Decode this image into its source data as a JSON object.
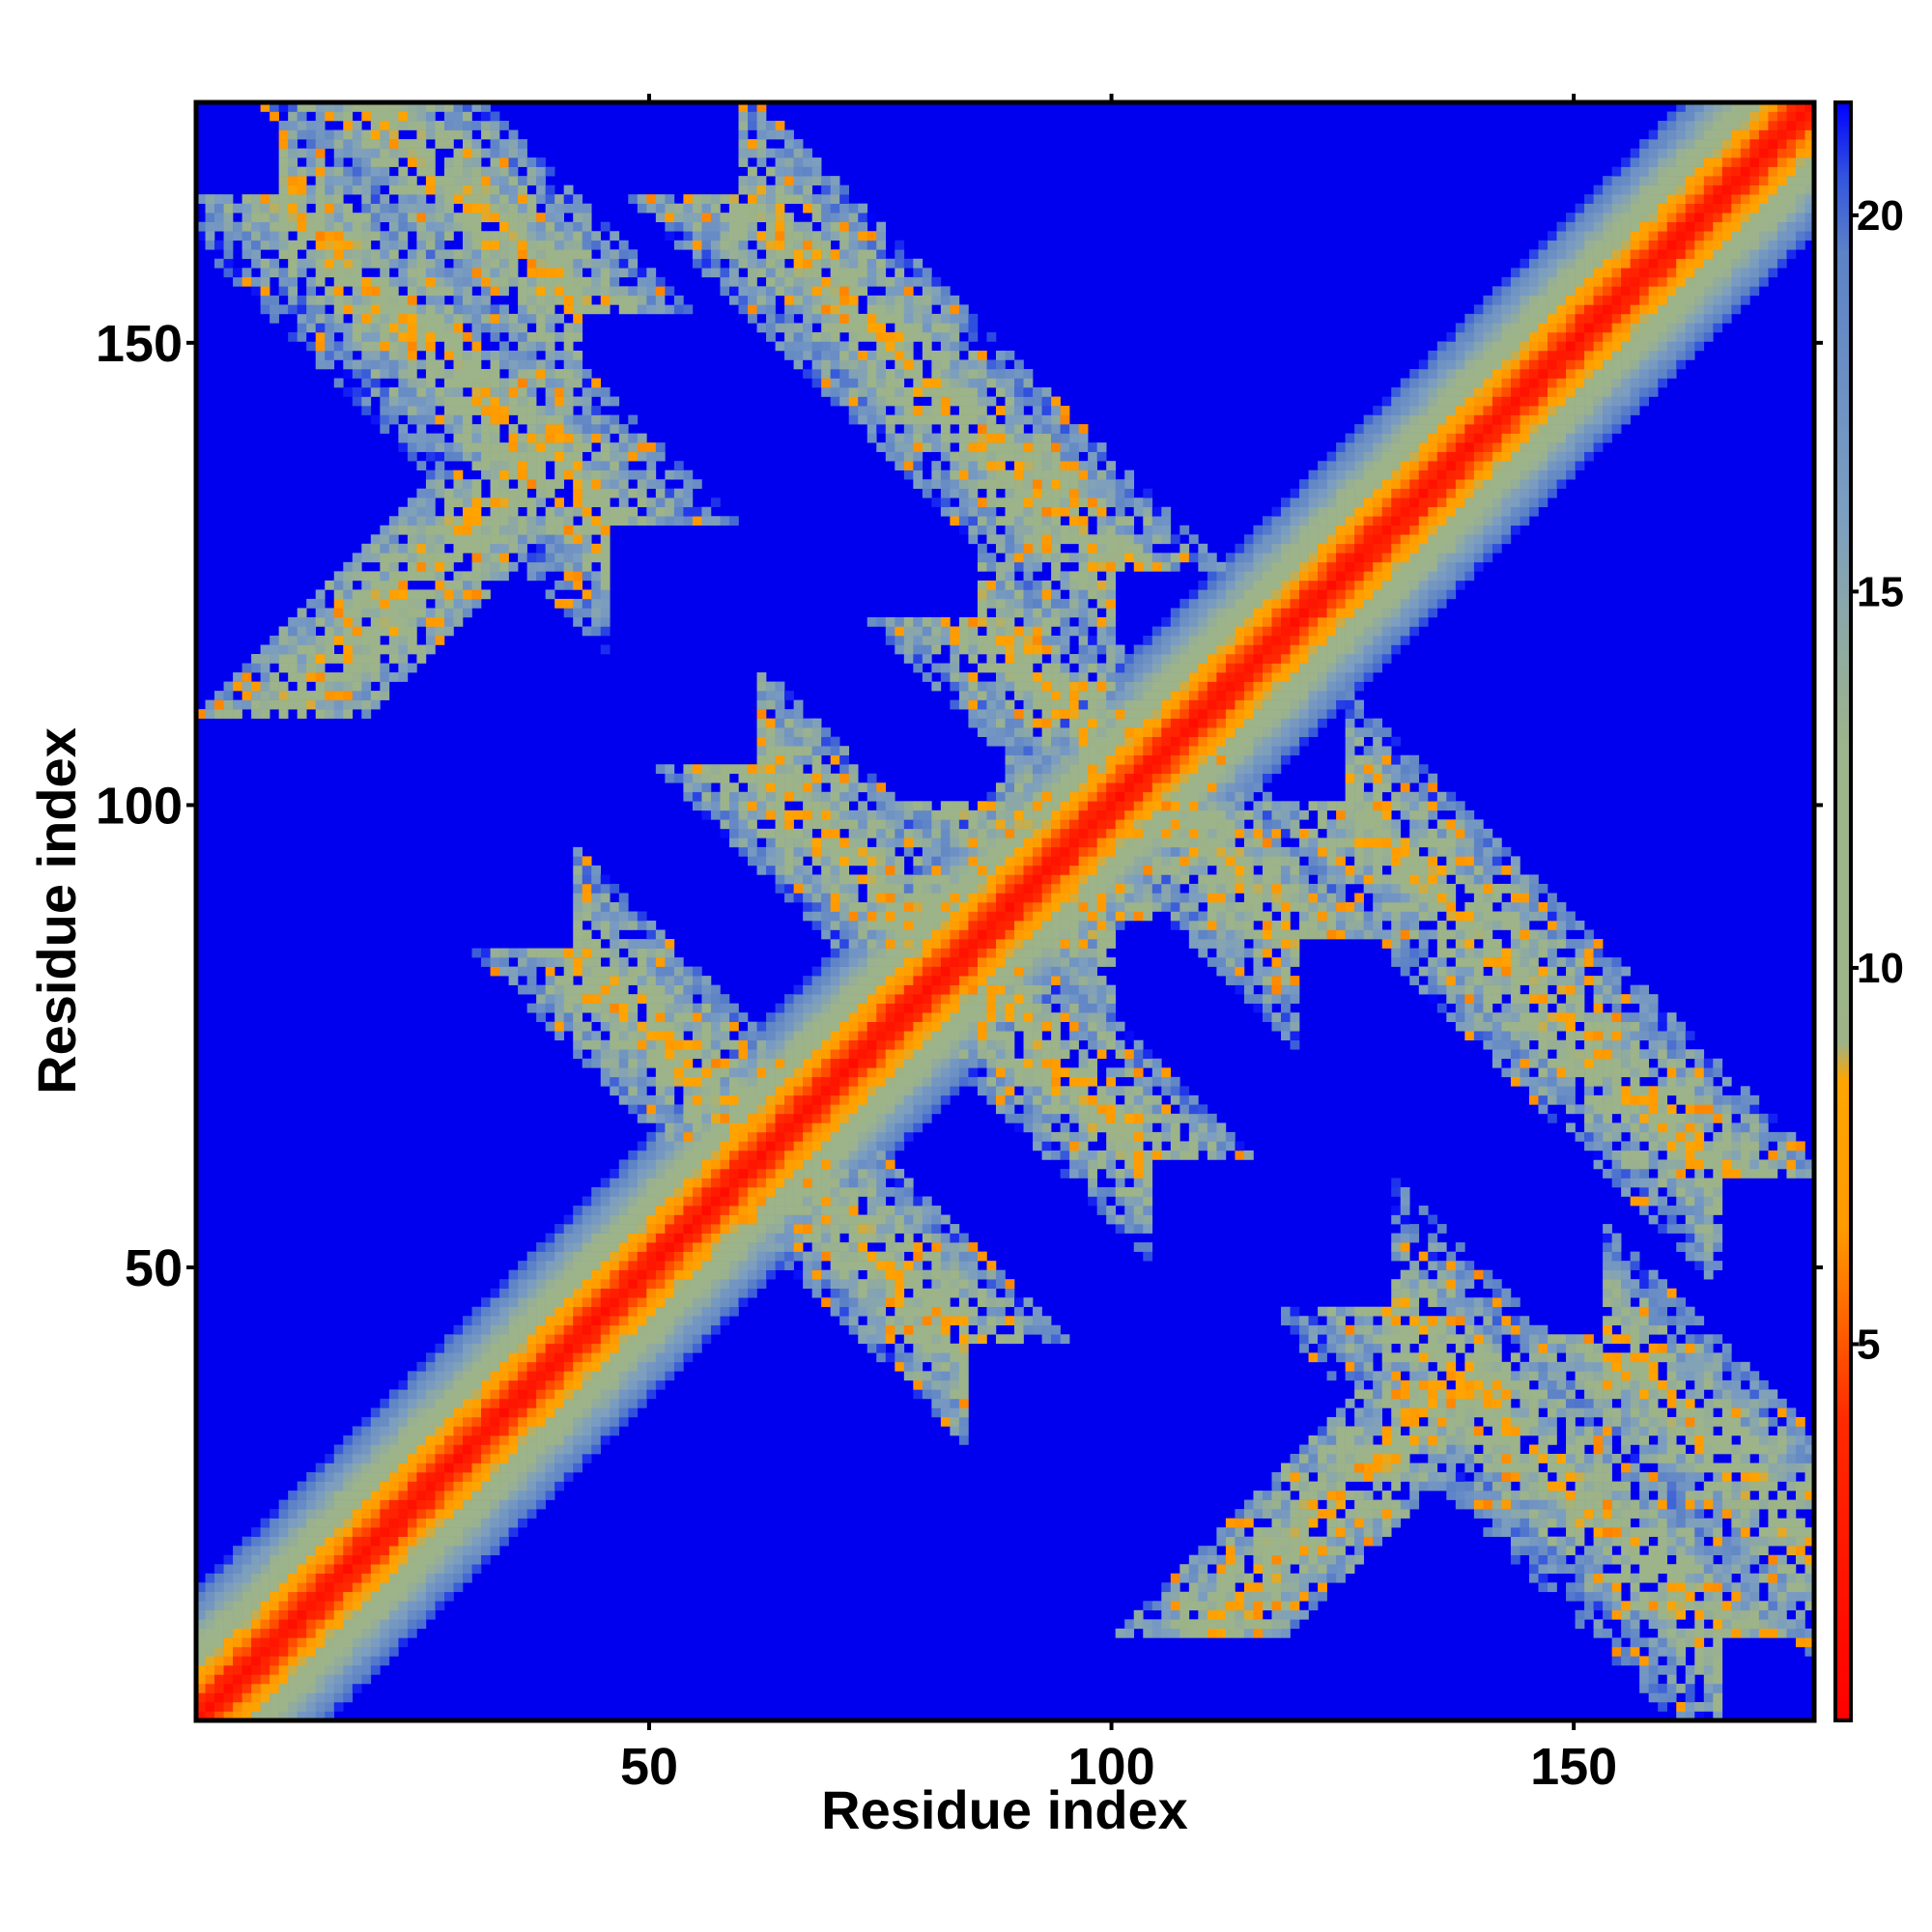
{
  "chart_data": {
    "type": "heatmap",
    "xlabel": "Residue index",
    "ylabel": "Residue index",
    "n_residues": 176,
    "xlim": [
      1,
      176
    ],
    "ylim": [
      1,
      176
    ],
    "x_ticks": [
      50,
      100,
      150
    ],
    "y_ticks": [
      50,
      100,
      150
    ],
    "colorbar": {
      "ticks": [
        5,
        10,
        15,
        20
      ],
      "range": [
        0,
        21.5
      ],
      "stops": [
        {
          "value": 0,
          "color": "#ff0000"
        },
        {
          "value": 4,
          "color": "#ff2a00"
        },
        {
          "value": 6.5,
          "color": "#ff9900"
        },
        {
          "value": 8.5,
          "color": "#ffa500"
        },
        {
          "value": 9,
          "color": "#9db387"
        },
        {
          "value": 13,
          "color": "#9db38b"
        },
        {
          "value": 16,
          "color": "#7c9ec0"
        },
        {
          "value": 19.5,
          "color": "#5c82c7"
        },
        {
          "value": 20.5,
          "color": "#3355dd"
        },
        {
          "value": 21.5,
          "color": "#0000ff"
        }
      ]
    },
    "background_color": "#0000ee",
    "contact_bands": [
      {
        "type": "anti",
        "sum": 176,
        "from": 10,
        "to": 45,
        "width": 10
      },
      {
        "type": "anti",
        "sum": 176,
        "from": 131,
        "to": 166,
        "width": 10
      },
      {
        "type": "anti",
        "sum": 206,
        "from": 86,
        "to": 120,
        "width": 9
      },
      {
        "type": "anti",
        "sum": 196,
        "from": 17,
        "to": 42,
        "width": 9
      },
      {
        "type": "anti",
        "sum": 196,
        "from": 154,
        "to": 179,
        "width": 9
      },
      {
        "type": "anti",
        "sum": 126,
        "from": 42,
        "to": 60,
        "width": 8
      },
      {
        "type": "anti",
        "sum": 126,
        "from": 66,
        "to": 84,
        "width": 8
      },
      {
        "type": "anti",
        "sum": 226,
        "from": 126,
        "to": 166,
        "width": 9
      },
      {
        "type": "anti",
        "sum": 226,
        "from": 60,
        "to": 100,
        "width": 9
      },
      {
        "type": "anti",
        "sum": 166,
        "from": 62,
        "to": 80,
        "width": 8
      },
      {
        "type": "anti",
        "sum": 166,
        "from": 86,
        "to": 104,
        "width": 8
      },
      {
        "type": "parallel",
        "offset": 100,
        "from": 110,
        "to": 140,
        "width": 7
      },
      {
        "type": "parallel",
        "offset": -100,
        "from": 10,
        "to": 40,
        "width": 7
      },
      {
        "type": "anti",
        "sum": 186,
        "from": 88,
        "to": 100,
        "width": 7
      }
    ]
  }
}
